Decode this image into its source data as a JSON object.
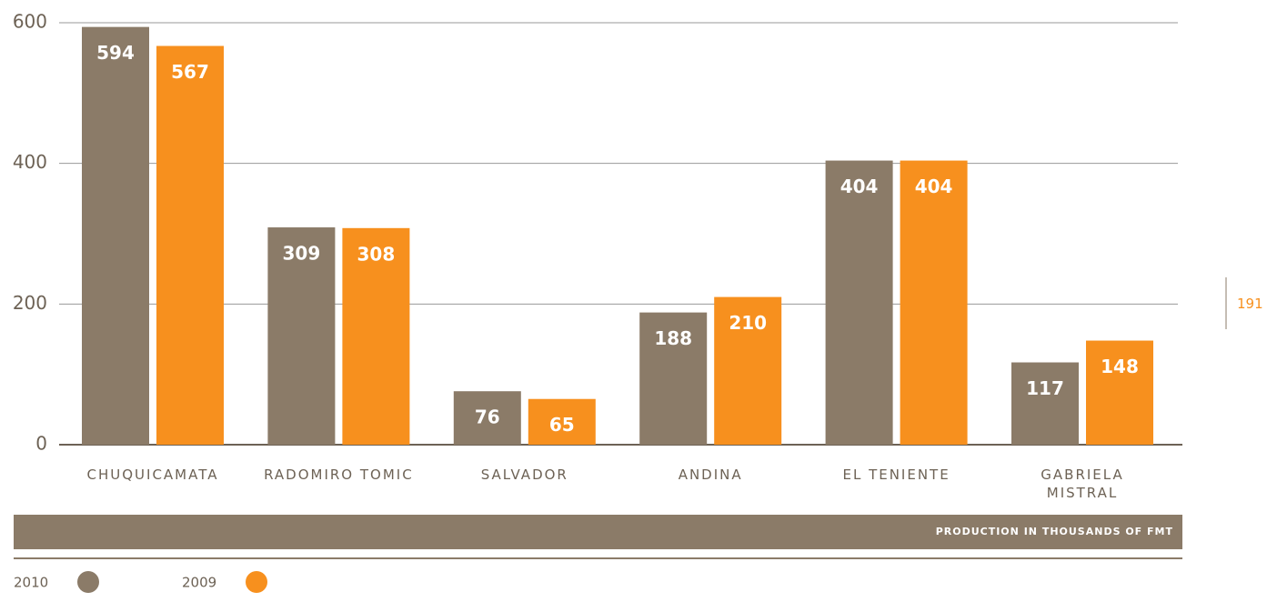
{
  "chart_data": {
    "type": "bar",
    "categories": [
      "CHUQUICAMATA",
      "RADOMIRO TOMIC",
      "SALVADOR",
      "ANDINA",
      "EL TENIENTE",
      "GABRIELA MISTRAL"
    ],
    "series": [
      {
        "name": "2010",
        "color": "#8b7b68",
        "values": [
          594,
          309,
          76,
          188,
          404,
          117
        ]
      },
      {
        "name": "2009",
        "color": "#f7901e",
        "values": [
          567,
          308,
          65,
          210,
          404,
          148
        ]
      }
    ],
    "ylim": [
      0,
      600
    ],
    "yticks": [
      0,
      200,
      400,
      600
    ],
    "grid": true,
    "x_label": "PRODUCTION IN THOUSANDS OF FMT",
    "legend": "bottom-left"
  },
  "page_number": "191"
}
